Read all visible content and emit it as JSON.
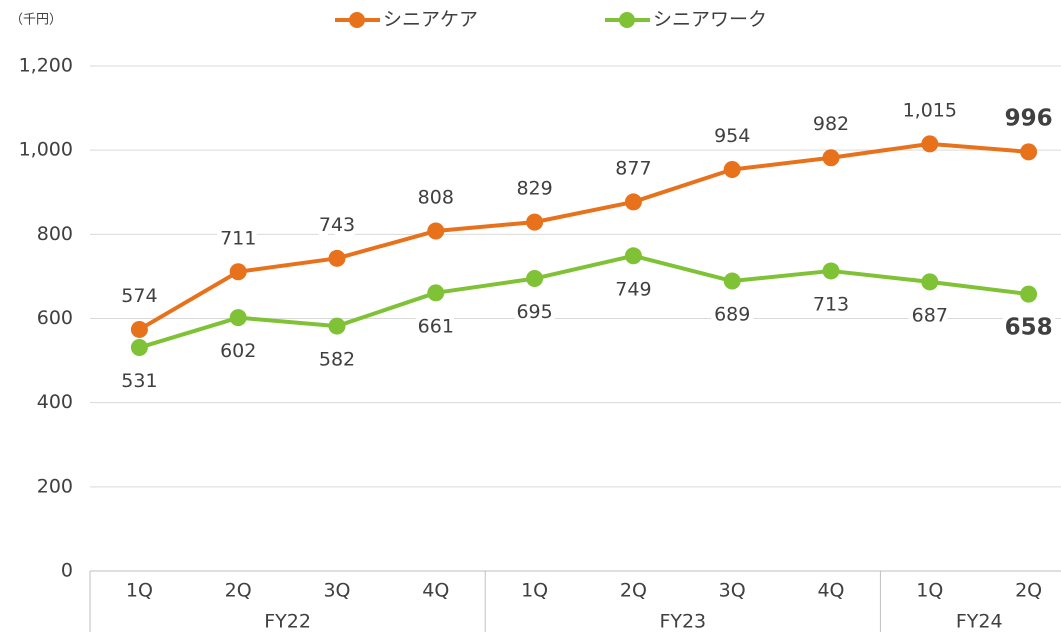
{
  "chart_data": {
    "type": "line",
    "unit_label": "（千円）",
    "category_groups": [
      {
        "name": "FY22",
        "categories": [
          "1Q",
          "2Q",
          "3Q",
          "4Q"
        ]
      },
      {
        "name": "FY23",
        "categories": [
          "1Q",
          "2Q",
          "3Q",
          "4Q"
        ]
      },
      {
        "name": "FY24",
        "categories": [
          "1Q",
          "2Q"
        ]
      }
    ],
    "series": [
      {
        "name": "シニアケア",
        "color": "#e8711c",
        "label_position": "above",
        "values": [
          574,
          711,
          743,
          808,
          829,
          877,
          954,
          982,
          1015,
          996
        ],
        "value_labels": [
          "574",
          "711",
          "743",
          "808",
          "829",
          "877",
          "954",
          "982",
          "1,015",
          "996"
        ]
      },
      {
        "name": "シニアワーク",
        "color": "#7fc236",
        "label_position": "below",
        "values": [
          531,
          602,
          582,
          661,
          695,
          749,
          689,
          713,
          687,
          658
        ]
      }
    ],
    "ylim": [
      0,
      1200
    ],
    "yticks": [
      0,
      200,
      400,
      600,
      800,
      {
        "value": 1000,
        "label": "1,000"
      },
      {
        "value": 1200,
        "label": "1,200"
      }
    ],
    "grid": true,
    "legend": "top"
  }
}
